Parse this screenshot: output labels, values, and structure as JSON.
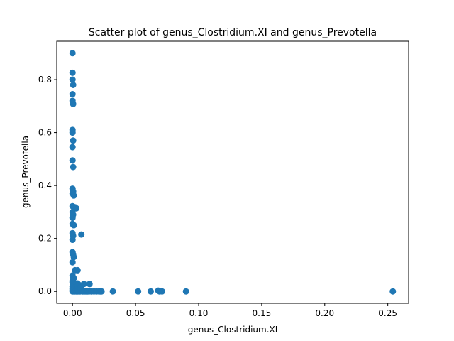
{
  "chart_data": {
    "type": "scatter",
    "title": "Scatter plot of genus_Clostridium.XI and genus_Prevotella",
    "xlabel": "genus_Clostridium.XI",
    "ylabel": "genus_Prevotella",
    "xlim": [
      -0.0125,
      0.2665
    ],
    "ylim": [
      -0.045,
      0.945
    ],
    "xticks": [
      0.0,
      0.05,
      0.1,
      0.15,
      0.2,
      0.25
    ],
    "xtick_labels": [
      "0.00",
      "0.05",
      "0.10",
      "0.15",
      "0.20",
      "0.25"
    ],
    "yticks": [
      0.0,
      0.2,
      0.4,
      0.6,
      0.8
    ],
    "ytick_labels": [
      "0.0",
      "0.2",
      "0.4",
      "0.6",
      "0.8"
    ],
    "grid": false,
    "legend": "none",
    "marker_color": "#1f77b4",
    "series": [
      {
        "points": [
          [
            0.0,
            0.9
          ],
          [
            0.0,
            0.826
          ],
          [
            0.0,
            0.8
          ],
          [
            0.0005,
            0.78
          ],
          [
            0.0,
            0.745
          ],
          [
            0.0,
            0.72
          ],
          [
            0.0005,
            0.708
          ],
          [
            0.0,
            0.61
          ],
          [
            0.0,
            0.6
          ],
          [
            0.0005,
            0.57
          ],
          [
            0.0,
            0.545
          ],
          [
            0.0,
            0.495
          ],
          [
            0.0005,
            0.47
          ],
          [
            0.0,
            0.388
          ],
          [
            0.0005,
            0.378
          ],
          [
            0.0,
            0.37
          ],
          [
            0.001,
            0.362
          ],
          [
            0.0,
            0.322
          ],
          [
            0.002,
            0.318
          ],
          [
            0.003,
            0.314
          ],
          [
            0.0,
            0.3
          ],
          [
            0.0005,
            0.29
          ],
          [
            0.0,
            0.278
          ],
          [
            0.0,
            0.255
          ],
          [
            0.001,
            0.25
          ],
          [
            0.0,
            0.22
          ],
          [
            0.0005,
            0.21
          ],
          [
            0.007,
            0.215
          ],
          [
            0.0,
            0.195
          ],
          [
            0.0,
            0.148
          ],
          [
            0.0005,
            0.14
          ],
          [
            0.001,
            0.13
          ],
          [
            0.0,
            0.11
          ],
          [
            0.002,
            0.08
          ],
          [
            0.004,
            0.08
          ],
          [
            0.0,
            0.06
          ],
          [
            0.001,
            0.05
          ],
          [
            0.0,
            0.04
          ],
          [
            0.0,
            0.035
          ],
          [
            0.002,
            0.03
          ],
          [
            0.004,
            0.03
          ],
          [
            0.0005,
            0.022
          ],
          [
            0.005,
            0.025
          ],
          [
            0.007,
            0.022
          ],
          [
            0.009,
            0.028
          ],
          [
            0.0135,
            0.028
          ],
          [
            0.0,
            0.018
          ],
          [
            0.002,
            0.015
          ],
          [
            0.004,
            0.012
          ],
          [
            0.006,
            0.01
          ],
          [
            0.0,
            0.01
          ],
          [
            0.003,
            0.005
          ],
          [
            0.0,
            0.005
          ],
          [
            0.001,
            0.0
          ],
          [
            0.0,
            0.0
          ],
          [
            0.002,
            0.0
          ],
          [
            0.003,
            0.0
          ],
          [
            0.004,
            0.0
          ],
          [
            0.005,
            0.0
          ],
          [
            0.006,
            0.0
          ],
          [
            0.008,
            0.0
          ],
          [
            0.009,
            0.0
          ],
          [
            0.01,
            0.0
          ],
          [
            0.011,
            0.0
          ],
          [
            0.012,
            0.0
          ],
          [
            0.013,
            0.0
          ],
          [
            0.015,
            0.0
          ],
          [
            0.017,
            0.0
          ],
          [
            0.019,
            0.0
          ],
          [
            0.021,
            0.0
          ],
          [
            0.022,
            0.0
          ],
          [
            0.023,
            0.0
          ],
          [
            0.032,
            0.0
          ],
          [
            0.052,
            0.0
          ],
          [
            0.062,
            0.0
          ],
          [
            0.068,
            0.003
          ],
          [
            0.069,
            0.0
          ],
          [
            0.071,
            0.0
          ],
          [
            0.09,
            0.0
          ],
          [
            0.254,
            0.0
          ]
        ]
      }
    ]
  }
}
